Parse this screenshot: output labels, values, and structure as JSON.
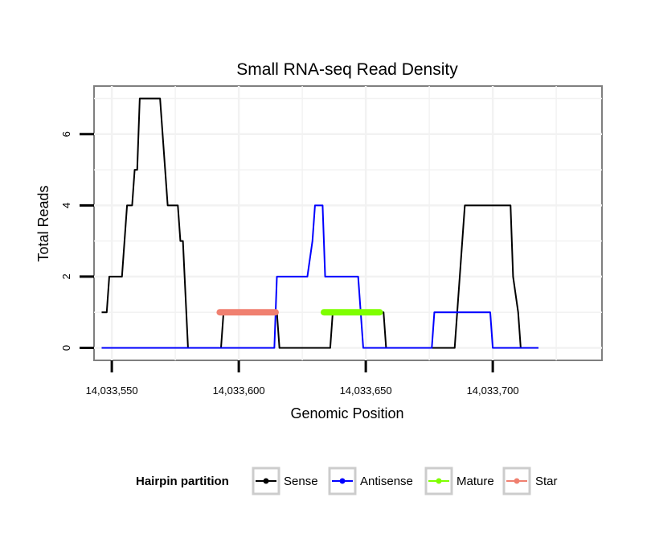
{
  "chart_data": {
    "type": "line",
    "title": "Small RNA-seq Read Density",
    "xlabel": "Genomic Position",
    "ylabel": "Total Reads",
    "xlim": [
      14033543,
      14033743
    ],
    "ylim": [
      -0.35,
      7.35
    ],
    "x_ticks": [
      {
        "value": 14033550,
        "label": "14,033,550"
      },
      {
        "value": 14033600,
        "label": "14,033,600"
      },
      {
        "value": 14033650,
        "label": "14,033,650"
      },
      {
        "value": 14033700,
        "label": "14,033,700"
      }
    ],
    "y_ticks": [
      {
        "value": 0,
        "label": "0"
      },
      {
        "value": 2,
        "label": "2"
      },
      {
        "value": 4,
        "label": "4"
      },
      {
        "value": 6,
        "label": "6"
      }
    ],
    "grid": true,
    "legend": {
      "title": "Hairpin partition",
      "position": "bottom",
      "entries": [
        {
          "name": "Sense",
          "color": "#000000"
        },
        {
          "name": "Antisense",
          "color": "#0000ff"
        },
        {
          "name": "Mature",
          "color": "#7fff00"
        },
        {
          "name": "Star",
          "color": "#f08070"
        }
      ]
    },
    "series": [
      {
        "name": "Sense",
        "color": "#000000",
        "width": 2,
        "points": [
          [
            14033546,
            1
          ],
          [
            14033548,
            1
          ],
          [
            14033549,
            2
          ],
          [
            14033554,
            2
          ],
          [
            14033556,
            4
          ],
          [
            14033558,
            4
          ],
          [
            14033559,
            5
          ],
          [
            14033560,
            5
          ],
          [
            14033561,
            7
          ],
          [
            14033569,
            7
          ],
          [
            14033571,
            5
          ],
          [
            14033572,
            4
          ],
          [
            14033576,
            4
          ],
          [
            14033577,
            3
          ],
          [
            14033578,
            3
          ],
          [
            14033580,
            0
          ],
          [
            14033593,
            0
          ],
          [
            14033594,
            1
          ],
          [
            14033615,
            1
          ],
          [
            14033616,
            0
          ],
          [
            14033636,
            0
          ],
          [
            14033637,
            1
          ],
          [
            14033657,
            1
          ],
          [
            14033658,
            0
          ],
          [
            14033685,
            0
          ],
          [
            14033687,
            2
          ],
          [
            14033689,
            4
          ],
          [
            14033707,
            4
          ],
          [
            14033708,
            2
          ],
          [
            14033710,
            1
          ],
          [
            14033711,
            0
          ],
          [
            14033718,
            0
          ]
        ]
      },
      {
        "name": "Antisense",
        "color": "#0000ff",
        "width": 2,
        "points": [
          [
            14033546,
            0
          ],
          [
            14033614,
            0
          ],
          [
            14033615,
            2
          ],
          [
            14033627,
            2
          ],
          [
            14033629,
            3
          ],
          [
            14033630,
            4
          ],
          [
            14033633,
            4
          ],
          [
            14033634,
            2
          ],
          [
            14033647,
            2
          ],
          [
            14033649,
            0
          ],
          [
            14033676,
            0
          ],
          [
            14033677,
            1
          ],
          [
            14033699,
            1
          ],
          [
            14033700,
            0
          ],
          [
            14033718,
            0
          ]
        ]
      },
      {
        "name": "Star",
        "color": "#f08070",
        "width": 8,
        "points": [
          [
            14033592.5,
            1
          ],
          [
            14033614.5,
            1
          ]
        ]
      },
      {
        "name": "Mature",
        "color": "#7fff00",
        "width": 8,
        "points": [
          [
            14033633.5,
            1
          ],
          [
            14033655.5,
            1
          ]
        ]
      }
    ]
  }
}
